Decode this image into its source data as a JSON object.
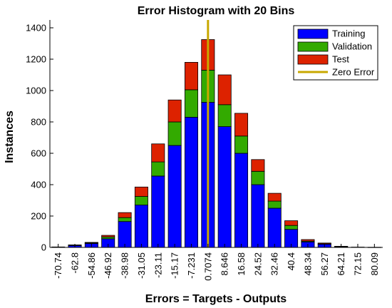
{
  "colors": {
    "training": "#0000ff",
    "validation": "#33aa00",
    "test": "#dd2200",
    "zero_error": "#c8a800",
    "axis": "#000000",
    "background": "#ffffff"
  },
  "chart_data": {
    "type": "bar",
    "stacked": true,
    "title": "Error Histogram with 20 Bins",
    "xlabel": "Errors = Targets - Outputs",
    "ylabel": "Instances",
    "ylim": [
      0,
      1450
    ],
    "yticks": [
      0,
      200,
      400,
      600,
      800,
      1000,
      1200,
      1400
    ],
    "categories": [
      "-70.74",
      "-62.8",
      "-54.86",
      "-46.92",
      "-38.98",
      "-31.05",
      "-23.11",
      "-15.17",
      "-7.231",
      "0.7074",
      "8.646",
      "16.58",
      "24.52",
      "32.46",
      "40.4",
      "48.34",
      "56.27",
      "64.21",
      "72.15",
      "80.09"
    ],
    "series": [
      {
        "name": "Training",
        "values": [
          3,
          12,
          25,
          55,
          165,
          270,
          455,
          650,
          830,
          925,
          770,
          600,
          400,
          250,
          115,
          35,
          20,
          5,
          2,
          1
        ]
      },
      {
        "name": "Validation",
        "values": [
          0,
          2,
          4,
          12,
          25,
          55,
          90,
          150,
          175,
          205,
          140,
          110,
          85,
          45,
          25,
          5,
          3,
          1,
          0,
          0
        ]
      },
      {
        "name": "Test",
        "values": [
          0,
          2,
          3,
          10,
          32,
          60,
          115,
          140,
          175,
          195,
          190,
          145,
          75,
          50,
          30,
          10,
          5,
          1,
          0,
          0
        ]
      }
    ],
    "zero_error": {
      "name": "Zero Error",
      "x_category_index": 9
    },
    "legend_position": "top-right",
    "grid": false
  }
}
